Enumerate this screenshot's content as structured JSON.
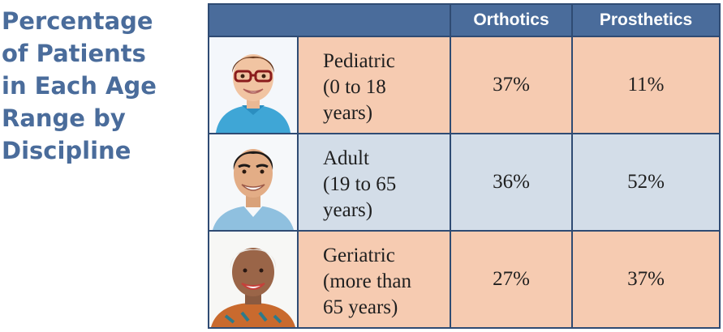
{
  "title": {
    "lines": [
      "Percentage",
      "of Patients",
      "in Each Age",
      "Range by",
      "Discipline"
    ]
  },
  "header": {
    "columns": [
      "Orthotics",
      "Prosthetics"
    ]
  },
  "rows": [
    {
      "label_lines": [
        "Pediatric",
        "(0 to 18",
        "years)"
      ],
      "orthotics": "37%",
      "prosthetics": "11%",
      "photo_icon": "child-portrait-icon"
    },
    {
      "label_lines": [
        "Adult",
        "(19 to 65",
        "years)"
      ],
      "orthotics": "36%",
      "prosthetics": "52%",
      "photo_icon": "adult-portrait-icon"
    },
    {
      "label_lines": [
        "Geriatric",
        "(more than",
        "65 years)"
      ],
      "orthotics": "27%",
      "prosthetics": "37%",
      "photo_icon": "senior-portrait-icon"
    }
  ],
  "colors": {
    "title": "#4a6c9b",
    "header_bg": "#4a6c9b",
    "border": "#2f4b73",
    "peach_row": "#f6cbb1",
    "blue_row": "#d3dde8"
  },
  "chart_data": {
    "type": "table",
    "title": "Percentage of Patients in Each Age Range by Discipline",
    "columns": [
      "Orthotics",
      "Prosthetics"
    ],
    "categories": [
      "Pediatric (0 to 18 years)",
      "Adult (19 to 65 years)",
      "Geriatric (more than 65 years)"
    ],
    "series": [
      {
        "name": "Orthotics",
        "values": [
          37,
          36,
          27
        ]
      },
      {
        "name": "Prosthetics",
        "values": [
          11,
          52,
          37
        ]
      }
    ],
    "unit": "%"
  }
}
